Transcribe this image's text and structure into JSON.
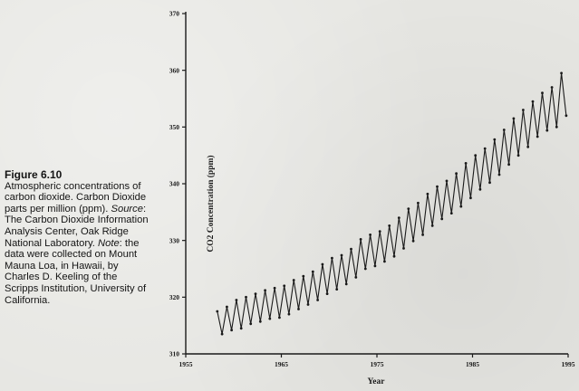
{
  "caption": {
    "figure_label": "Figure 6.10",
    "text_1": "Atmospheric concentrations of carbon dioxide. Carbon Dioxide parts per million (ppm). ",
    "source_label": "Source",
    "text_2": ": The Carbon Dioxide Information Analysis Center, Oak Ridge National Laboratory. ",
    "note_label": "Note",
    "text_3": ": the data were collected on Mount Mauna Loa, in Hawaii, by Charles D. Keeling of the Scripps Institution, University of California."
  },
  "chart_data": {
    "type": "line",
    "title": "",
    "xlabel": "Year",
    "ylabel": "CO2 Concentration (ppm)",
    "xlim": [
      1955,
      1995
    ],
    "ylim": [
      310,
      370
    ],
    "x_ticks": [
      "1955",
      "1965",
      "1975",
      "1985",
      "1995"
    ],
    "y_ticks": [
      "310",
      "320",
      "330",
      "340",
      "350",
      "360",
      "370"
    ],
    "grid": false,
    "legend": "none",
    "series": [
      {
        "name": "",
        "x": [
          1958.3,
          1958.8,
          1959.3,
          1959.8,
          1960.3,
          1960.8,
          1961.3,
          1961.8,
          1962.3,
          1962.8,
          1963.3,
          1963.8,
          1964.3,
          1964.8,
          1965.3,
          1965.8,
          1966.3,
          1966.8,
          1967.3,
          1967.8,
          1968.3,
          1968.8,
          1969.3,
          1969.8,
          1970.3,
          1970.8,
          1971.3,
          1971.8,
          1972.3,
          1972.8,
          1973.3,
          1973.8,
          1974.3,
          1974.8,
          1975.3,
          1975.8,
          1976.3,
          1976.8,
          1977.3,
          1977.8,
          1978.3,
          1978.8,
          1979.3,
          1979.8,
          1980.3,
          1980.8,
          1981.3,
          1981.8,
          1982.3,
          1982.8,
          1983.3,
          1983.8,
          1984.3,
          1984.8,
          1985.3,
          1985.8,
          1986.3,
          1986.8,
          1987.3,
          1987.8,
          1988.3,
          1988.8,
          1989.3,
          1989.8,
          1990.3,
          1990.8,
          1991.3,
          1991.8,
          1992.3,
          1992.8,
          1993.3,
          1993.8,
          1994.3,
          1994.8
        ],
        "y": [
          317.5,
          313.5,
          318.3,
          314.2,
          319.5,
          314.5,
          320.0,
          315.3,
          320.6,
          315.7,
          321.2,
          316.2,
          321.6,
          316.4,
          322.0,
          317.0,
          323.0,
          317.9,
          323.7,
          318.7,
          324.5,
          319.5,
          325.8,
          320.6,
          326.9,
          321.4,
          327.4,
          322.3,
          328.5,
          323.5,
          330.2,
          325.0,
          331.0,
          325.5,
          331.6,
          326.3,
          332.6,
          327.2,
          334.0,
          328.6,
          335.6,
          329.9,
          336.6,
          331.0,
          338.2,
          332.6,
          339.5,
          333.8,
          340.5,
          334.8,
          341.8,
          336.0,
          343.6,
          337.5,
          345.0,
          339.0,
          346.2,
          340.2,
          347.8,
          341.6,
          349.5,
          343.4,
          351.5,
          345.0,
          353.0,
          346.5,
          354.5,
          348.3,
          356.0,
          349.4,
          357.0,
          350.0,
          359.5,
          352.0
        ]
      }
    ]
  }
}
